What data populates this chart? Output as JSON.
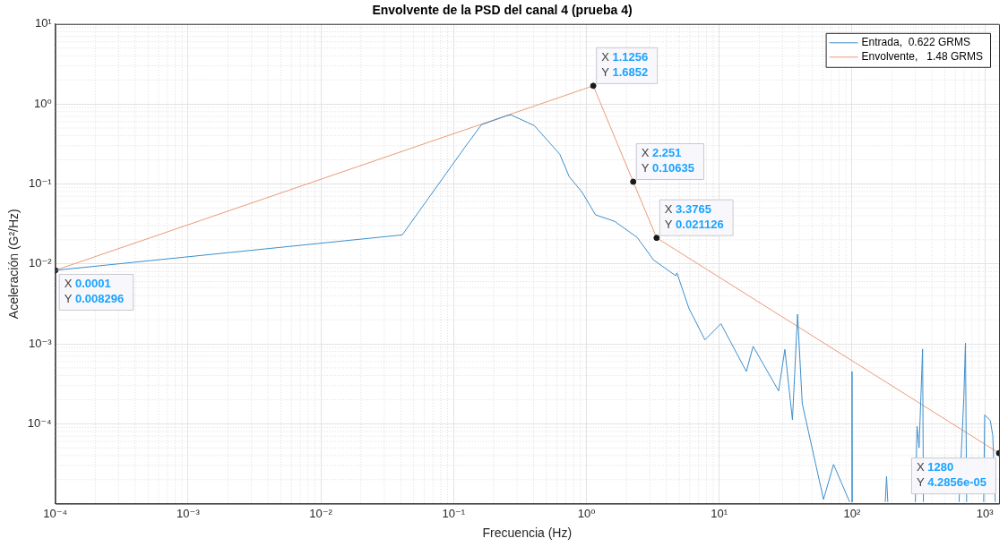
{
  "chart_data": {
    "type": "line",
    "title": "Envolvente de la PSD del canal 4 (prueba 4)",
    "xlabel": "Frecuencia (Hz)",
    "ylabel": "Aceleración (G²/Hz)",
    "log": "xy",
    "grid": true,
    "legend": "top right",
    "line_style": "solid",
    "xlim": [
      0.0001,
      1280
    ],
    "ylim": [
      1e-05,
      10
    ],
    "xticks": [
      {
        "value": 0.0001,
        "label": "10⁻⁴"
      },
      {
        "value": 0.001,
        "label": "10⁻³"
      },
      {
        "value": 0.01,
        "label": "10⁻²"
      },
      {
        "value": 0.1,
        "label": "10⁻¹"
      },
      {
        "value": 1,
        "label": "10⁰"
      },
      {
        "value": 10,
        "label": "10¹"
      },
      {
        "value": 100,
        "label": "10²"
      },
      {
        "value": 1000,
        "label": "10³"
      }
    ],
    "yticks": [
      {
        "value": 0.0001,
        "label": "10⁻⁴"
      },
      {
        "value": 0.001,
        "label": "10⁻³"
      },
      {
        "value": 0.01,
        "label": "10⁻²"
      },
      {
        "value": 0.1,
        "label": "10⁻¹"
      },
      {
        "value": 1,
        "label": "10⁰"
      },
      {
        "value": 10,
        "label": "10¹"
      }
    ],
    "series": [
      {
        "name": "Entrada,  0.622 GRMS",
        "color": "#3d8fcc",
        "x": [
          0.0001,
          0.041,
          0.122,
          0.162,
          0.25,
          0.27,
          0.405,
          0.63,
          0.74,
          0.93,
          1.17,
          1.63,
          2.41,
          3.2,
          4.7,
          4.8,
          5.9,
          7.8,
          10.3,
          16,
          18,
          28,
          31.2,
          35.6,
          38.9,
          42.2,
          61,
          72.6,
          96,
          98,
          99.5,
          100,
          100.5,
          140,
          178,
          182,
          186,
          250,
          300,
          309,
          320,
          340,
          345,
          500,
          640,
          695,
          715,
          730,
          900,
          980,
          998,
          1100,
          1148,
          1200
        ],
        "values": [
          0.008296,
          0.023,
          0.29,
          0.55,
          0.71,
          0.73,
          0.536,
          0.235,
          0.124,
          0.078,
          0.041,
          0.034,
          0.0214,
          0.0112,
          0.0071,
          0.0077,
          0.0028,
          0.00112,
          0.00178,
          0.00045,
          0.00093,
          0.000257,
          0.00085,
          0.000112,
          0.00234,
          0.000178,
          1.13e-05,
          3.1e-05,
          1.05e-05,
          null,
          1.05e-05,
          0.00045,
          1.05e-05,
          null,
          1.05e-05,
          2.2e-05,
          1.05e-05,
          null,
          1.05e-05,
          9.3e-05,
          5e-05,
          0.00086,
          1.05e-05,
          null,
          1.05e-05,
          0.00021,
          0.00102,
          1.05e-05,
          null,
          1.05e-05,
          0.000129,
          0.00011,
          7.1e-05,
          1.05e-05
        ]
      },
      {
        "name": "Envolvente,   1.48 GRMS",
        "color": "#eb9a78",
        "marker": "circle",
        "x": [
          0.0001,
          1.1256,
          2.251,
          3.3765,
          1280
        ],
        "values": [
          0.008296,
          1.6852,
          0.10635,
          0.021126,
          4.2856e-05
        ]
      }
    ],
    "annotations": [
      {
        "text": "X 0.0001\nY 0.008296",
        "x": 0.0001,
        "y": 0.008296
      },
      {
        "text": "X 1.1256\nY 1.6852",
        "x": 1.1256,
        "y": 1.6852
      },
      {
        "text": "X 2.251\nY 0.10635",
        "x": 2.251,
        "y": 0.10635
      },
      {
        "text": "X 3.3765\nY 0.021126",
        "x": 3.3765,
        "y": 0.021126
      },
      {
        "text": "X 1280\nY 4.2856e-05",
        "x": 1280,
        "y": 4.2856e-05
      }
    ]
  }
}
